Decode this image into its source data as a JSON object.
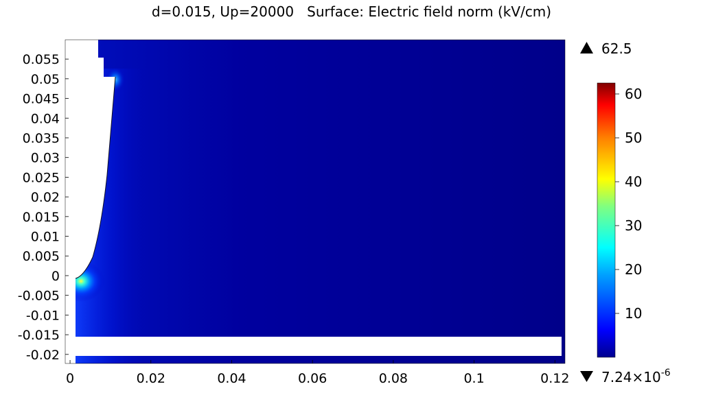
{
  "chart_data": {
    "type": "heatmap",
    "title": "d=0.015, Up=20000   Surface: Electric field norm (kV/cm)",
    "xlim": [
      -0.0012,
      0.1225
    ],
    "ylim": [
      -0.0223,
      0.0599
    ],
    "x_ticks": [
      0,
      0.02,
      0.04,
      0.06,
      0.08,
      0.1,
      0.12
    ],
    "x_tick_labels": [
      "0",
      "0.02",
      "0.04",
      "0.06",
      "0.08",
      "0.1",
      "0.12"
    ],
    "y_ticks": [
      0.055,
      0.05,
      0.045,
      0.04,
      0.035,
      0.03,
      0.025,
      0.02,
      0.015,
      0.01,
      0.005,
      0,
      -0.005,
      -0.01,
      -0.015,
      -0.02
    ],
    "y_tick_labels": [
      "0.055",
      "0.05",
      "0.045",
      "0.04",
      "0.035",
      "0.03",
      "0.025",
      "0.02",
      "0.015",
      "0.01",
      "0.005",
      "0",
      "-0.005",
      "-0.01",
      "-0.015",
      "-0.02"
    ],
    "colorbar": {
      "min": 7.24e-06,
      "max": 62.5,
      "ticks": [
        10,
        20,
        30,
        40,
        50,
        60
      ],
      "tick_labels": [
        "10",
        "20",
        "30",
        "40",
        "50",
        "60"
      ],
      "max_label": "62.5",
      "min_label_mantissa": "7.24×10",
      "min_label_exponent": "-6",
      "colormap": "rainbow"
    },
    "field_peak": {
      "x": 0.0005,
      "y": 0.0,
      "value": 62.5
    },
    "field_secondary_peak": {
      "x": 0.0095,
      "y": 0.05,
      "value": 20
    },
    "background_value": 2
  },
  "colors": {
    "background": "#ffffff",
    "field_base": "#00008f",
    "cutout": "#ffffff"
  }
}
